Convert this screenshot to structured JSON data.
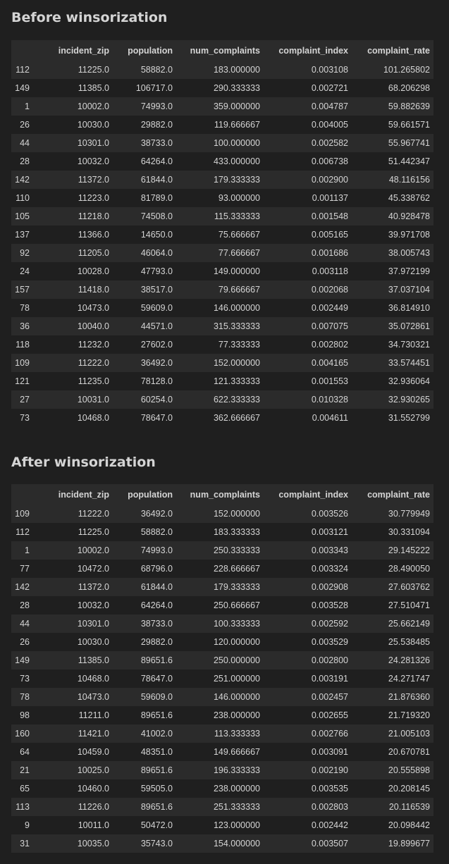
{
  "before": {
    "title": "Before winsorization",
    "columns": [
      "",
      "incident_zip",
      "population",
      "num_complaints",
      "complaint_index",
      "complaint_rate"
    ],
    "rows": [
      [
        "112",
        "11225.0",
        "58882.0",
        "183.000000",
        "0.003108",
        "101.265802"
      ],
      [
        "149",
        "11385.0",
        "106717.0",
        "290.333333",
        "0.002721",
        "68.206298"
      ],
      [
        "1",
        "10002.0",
        "74993.0",
        "359.000000",
        "0.004787",
        "59.882639"
      ],
      [
        "26",
        "10030.0",
        "29882.0",
        "119.666667",
        "0.004005",
        "59.661571"
      ],
      [
        "44",
        "10301.0",
        "38733.0",
        "100.000000",
        "0.002582",
        "55.967741"
      ],
      [
        "28",
        "10032.0",
        "64264.0",
        "433.000000",
        "0.006738",
        "51.442347"
      ],
      [
        "142",
        "11372.0",
        "61844.0",
        "179.333333",
        "0.002900",
        "48.116156"
      ],
      [
        "110",
        "11223.0",
        "81789.0",
        "93.000000",
        "0.001137",
        "45.338762"
      ],
      [
        "105",
        "11218.0",
        "74508.0",
        "115.333333",
        "0.001548",
        "40.928478"
      ],
      [
        "137",
        "11366.0",
        "14650.0",
        "75.666667",
        "0.005165",
        "39.971708"
      ],
      [
        "92",
        "11205.0",
        "46064.0",
        "77.666667",
        "0.001686",
        "38.005743"
      ],
      [
        "24",
        "10028.0",
        "47793.0",
        "149.000000",
        "0.003118",
        "37.972199"
      ],
      [
        "157",
        "11418.0",
        "38517.0",
        "79.666667",
        "0.002068",
        "37.037104"
      ],
      [
        "78",
        "10473.0",
        "59609.0",
        "146.000000",
        "0.002449",
        "36.814910"
      ],
      [
        "36",
        "10040.0",
        "44571.0",
        "315.333333",
        "0.007075",
        "35.072861"
      ],
      [
        "118",
        "11232.0",
        "27602.0",
        "77.333333",
        "0.002802",
        "34.730321"
      ],
      [
        "109",
        "11222.0",
        "36492.0",
        "152.000000",
        "0.004165",
        "33.574451"
      ],
      [
        "121",
        "11235.0",
        "78128.0",
        "121.333333",
        "0.001553",
        "32.936064"
      ],
      [
        "27",
        "10031.0",
        "60254.0",
        "622.333333",
        "0.010328",
        "32.930265"
      ],
      [
        "73",
        "10468.0",
        "78647.0",
        "362.666667",
        "0.004611",
        "31.552799"
      ]
    ]
  },
  "after": {
    "title": "After winsorization",
    "columns": [
      "",
      "incident_zip",
      "population",
      "num_complaints",
      "complaint_index",
      "complaint_rate"
    ],
    "rows": [
      [
        "109",
        "11222.0",
        "36492.0",
        "152.000000",
        "0.003526",
        "30.779949"
      ],
      [
        "112",
        "11225.0",
        "58882.0",
        "183.333333",
        "0.003121",
        "30.331094"
      ],
      [
        "1",
        "10002.0",
        "74993.0",
        "250.333333",
        "0.003343",
        "29.145222"
      ],
      [
        "77",
        "10472.0",
        "68796.0",
        "228.666667",
        "0.003324",
        "28.490050"
      ],
      [
        "142",
        "11372.0",
        "61844.0",
        "179.333333",
        "0.002908",
        "27.603762"
      ],
      [
        "28",
        "10032.0",
        "64264.0",
        "250.666667",
        "0.003528",
        "27.510471"
      ],
      [
        "44",
        "10301.0",
        "38733.0",
        "100.333333",
        "0.002592",
        "25.662149"
      ],
      [
        "26",
        "10030.0",
        "29882.0",
        "120.000000",
        "0.003529",
        "25.538485"
      ],
      [
        "149",
        "11385.0",
        "89651.6",
        "250.000000",
        "0.002800",
        "24.281326"
      ],
      [
        "73",
        "10468.0",
        "78647.0",
        "251.000000",
        "0.003191",
        "24.271747"
      ],
      [
        "78",
        "10473.0",
        "59609.0",
        "146.000000",
        "0.002457",
        "21.876360"
      ],
      [
        "98",
        "11211.0",
        "89651.6",
        "238.000000",
        "0.002655",
        "21.719320"
      ],
      [
        "160",
        "11421.0",
        "41002.0",
        "113.333333",
        "0.002766",
        "21.005103"
      ],
      [
        "64",
        "10459.0",
        "48351.0",
        "149.666667",
        "0.003091",
        "20.670781"
      ],
      [
        "21",
        "10025.0",
        "89651.6",
        "196.333333",
        "0.002190",
        "20.555898"
      ],
      [
        "65",
        "10460.0",
        "59505.0",
        "238.000000",
        "0.003535",
        "20.208145"
      ],
      [
        "113",
        "11226.0",
        "89651.6",
        "251.333333",
        "0.002803",
        "20.116539"
      ],
      [
        "9",
        "10011.0",
        "50472.0",
        "123.000000",
        "0.002442",
        "20.098442"
      ],
      [
        "31",
        "10035.0",
        "35743.0",
        "154.000000",
        "0.003507",
        "19.899677"
      ]
    ]
  }
}
